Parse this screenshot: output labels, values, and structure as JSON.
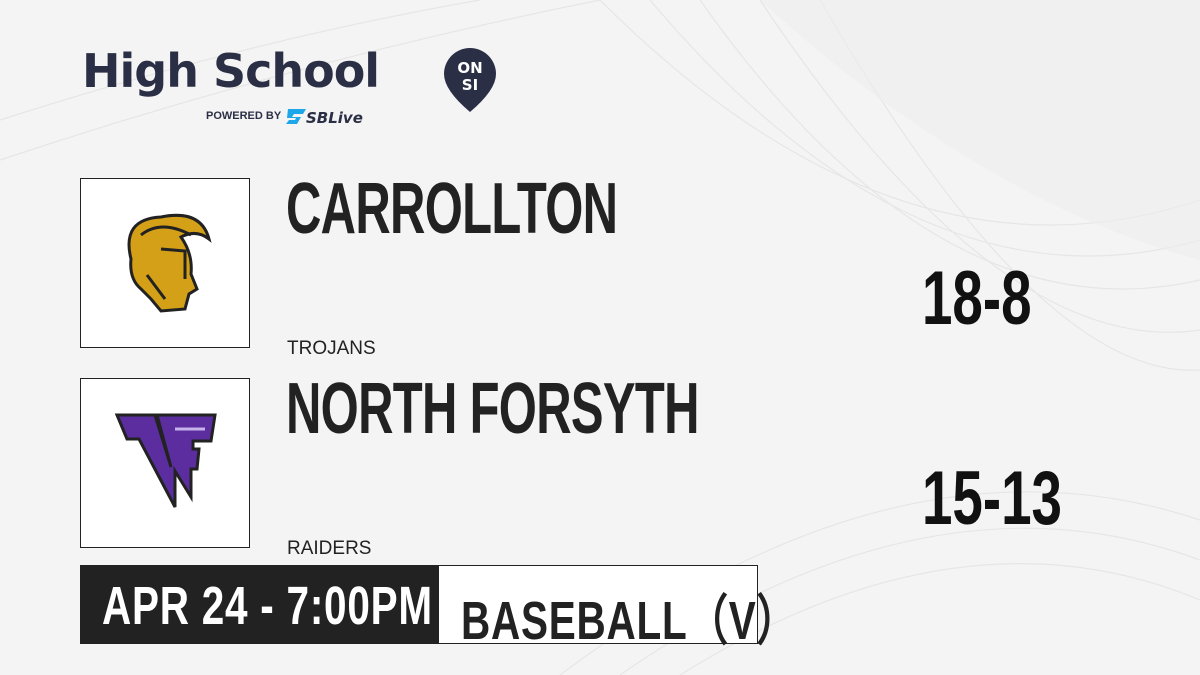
{
  "brand": {
    "title": "High School",
    "badge_top": "ON",
    "badge_bottom": "SI",
    "powered_by": "POWERED BY",
    "partner": "SBLive",
    "colors": {
      "navy": "#2b2f45",
      "partner_blue": "#1ea7e8"
    }
  },
  "teams": [
    {
      "name": "CARROLLTON",
      "mascot": "TROJANS",
      "record": "18-8",
      "logo_icon": "trojan-helmet-logo",
      "logo_color": "#d4a017"
    },
    {
      "name": "NORTH FORSYTH",
      "mascot": "RAIDERS",
      "record": "15-13",
      "logo_icon": "nf-letters-logo",
      "logo_color": "#5b2d9e"
    }
  ],
  "game": {
    "datetime": "APR 24 - 7:00PM",
    "sport": "BASEBALL（V）"
  }
}
